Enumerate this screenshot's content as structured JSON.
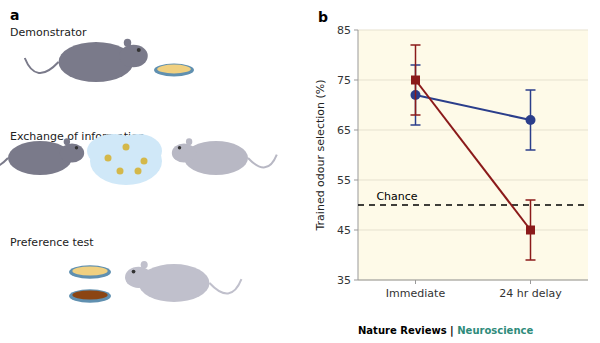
{
  "chart_data": {
    "type": "line",
    "ylabel": "Trained odour selection (%)",
    "categories": [
      "Immediate",
      "24 hr delay"
    ],
    "ylim": [
      35,
      85
    ],
    "yticks": [
      35,
      45,
      55,
      65,
      75,
      85
    ],
    "bg_color": "#FEFAE8",
    "series": [
      {
        "color": "#2B3E8B",
        "marker": "circle",
        "line_style": "solid",
        "values": [
          72,
          67
        ],
        "errors": [
          6,
          6
        ]
      },
      {
        "color": "#8B1A1A",
        "marker": "square",
        "line_style": "solid",
        "values": [
          75,
          45
        ],
        "errors": [
          7,
          6
        ]
      }
    ],
    "reference_lines": [
      {
        "value": 50,
        "label": "Chance",
        "line_style": "dashed"
      }
    ],
    "panel_labels": [
      "a",
      "b"
    ],
    "left_labels": [
      "Demonstrator",
      "Exchange of information",
      "Preference test"
    ],
    "footer": [
      {
        "text": "Nature Reviews | ",
        "color": "#000000"
      },
      {
        "text": "Neuroscience",
        "color": "#2E8B7A"
      }
    ]
  }
}
